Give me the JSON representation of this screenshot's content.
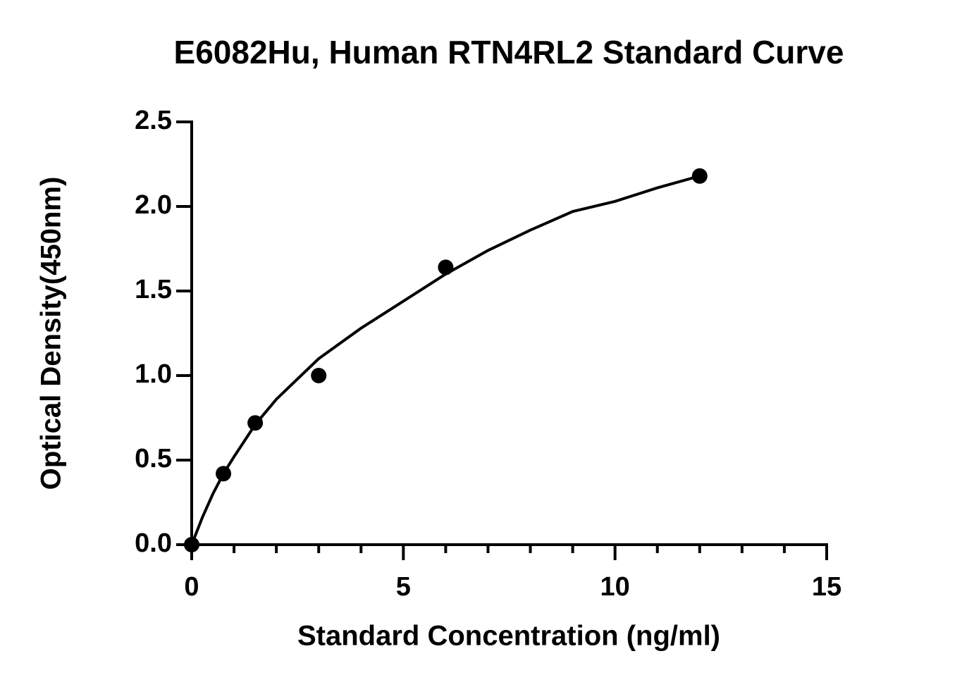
{
  "chart_data": {
    "type": "scatter",
    "title": "E6082Hu, Human RTN4RL2 Standard Curve",
    "x_label": "Standard Concentration (ng/ml)",
    "y_label": "Optical Density(450nm)",
    "x": [
      0,
      0.75,
      1.5,
      3,
      6,
      12
    ],
    "values": [
      0,
      0.42,
      0.72,
      1.0,
      1.64,
      2.18
    ],
    "color": "#000000",
    "fit": {
      "x": [
        0,
        0.25,
        0.5,
        0.75,
        1,
        1.5,
        2,
        3,
        4,
        5,
        6,
        7,
        8,
        9,
        10,
        11,
        12
      ],
      "values": [
        0,
        0.16,
        0.3,
        0.42,
        0.52,
        0.71,
        0.86,
        1.1,
        1.28,
        1.44,
        1.6,
        1.74,
        1.86,
        1.97,
        2.03,
        2.11,
        2.18
      ]
    },
    "xlim": [
      0,
      15
    ],
    "xticks": [
      0,
      5,
      10,
      15
    ],
    "xminorticks": [
      1,
      2,
      3,
      4,
      6,
      7,
      8,
      9,
      11,
      12,
      13,
      14
    ],
    "ylim": [
      0,
      2.5
    ],
    "yticks": [
      {
        "value": 0,
        "label": "0.0"
      },
      0.5,
      {
        "value": 1,
        "label": "1.0"
      },
      1.5,
      {
        "value": 2,
        "label": "2.0"
      },
      2.5
    ],
    "grid": false
  }
}
